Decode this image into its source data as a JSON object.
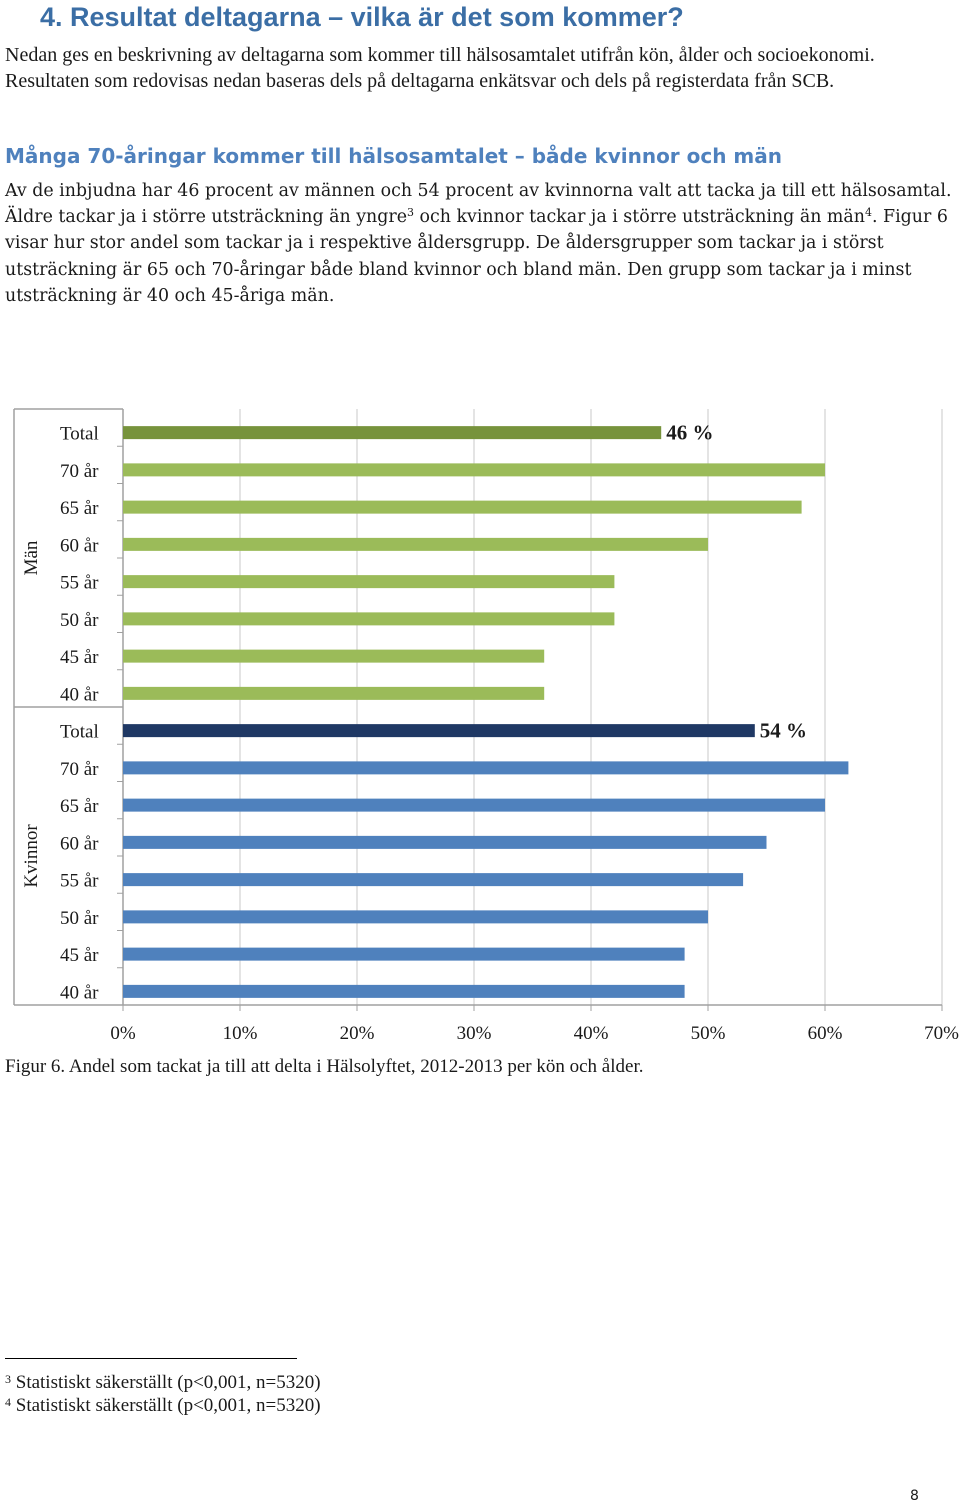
{
  "heading": "4. Resultat deltagarna – vilka är det som kommer?",
  "intro": "Nedan ges en beskrivning av deltagarna som kommer till hälsosamtalet utifrån kön, ålder och socioekonomi. Resultaten som redovisas nedan baseras dels på deltagarna enkätsvar och dels på registerdata från SCB.",
  "subheading": "Många 70-åringar kommer till hälsosamtalet – både kvinnor och män",
  "paragraph": {
    "p1": "Av de inbjudna har 46 procent av männen och 54 procent av kvinnorna valt att tacka ja till ett hälsosamtal. Äldre tackar ja i större utsträckning än yngre",
    "ref1": "3",
    "p2": " och kvinnor tackar ja i större utsträckning än män",
    "ref2": "4",
    "p3": ". Figur 6 visar hur stor andel som tackar ja i respektive åldersgrupp. De åldersgrupper som tackar ja i störst utsträckning är 65 och 70-åringar både bland kvinnor och bland män. Den grupp som tackar ja i minst utsträckning är 40 och 45-åriga män."
  },
  "chart_data": {
    "type": "bar",
    "orientation": "horizontal",
    "groups": [
      {
        "name": "Män",
        "bar_color": "#9bbb59",
        "total_color": "#77933c",
        "categories": [
          "Total",
          "70 år",
          "65 år",
          "60 år",
          "55 år",
          "50 år",
          "45 år",
          "40 år"
        ],
        "values": [
          46,
          60,
          58,
          50,
          42,
          42,
          36,
          36
        ],
        "total_label": "46 %"
      },
      {
        "name": "Kvinnor",
        "bar_color": "#4f81bd",
        "total_color": "#1f3864",
        "categories": [
          "Total",
          "70 år",
          "65 år",
          "60 år",
          "55 år",
          "50 år",
          "45 år",
          "40 år"
        ],
        "values": [
          54,
          62,
          60,
          55,
          53,
          50,
          48,
          48
        ],
        "total_label": "54 %"
      }
    ],
    "x_ticks": [
      "0%",
      "10%",
      "20%",
      "30%",
      "40%",
      "50%",
      "60%",
      "70%"
    ],
    "xlim": [
      0,
      70
    ],
    "grid": true,
    "legend": "none"
  },
  "caption": "Figur 6. Andel som tackat ja till att delta i Hälsolyftet, 2012-2013 per kön och ålder.",
  "footnotes": [
    {
      "num": "3",
      "text": "Statistiskt säkerställt (p<0,001, n=5320)"
    },
    {
      "num": "4",
      "text": "Statistiskt säkerställt (p<0,001, n=5320)"
    }
  ],
  "page_number": "8"
}
